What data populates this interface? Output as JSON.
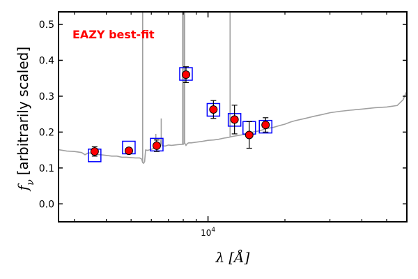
{
  "chart_data": {
    "type": "scatter",
    "xscale": "log",
    "xlim": [
      2600,
      60000
    ],
    "ylim": [
      -0.05,
      0.535
    ],
    "yticks": [
      0.0,
      0.1,
      0.2,
      0.3,
      0.4,
      0.5
    ],
    "ytick_labels": [
      "0.0",
      "0.1",
      "0.2",
      "0.3",
      "0.4",
      "0.5"
    ],
    "xtick_label": {
      "value": 10000,
      "base": "10",
      "exponent": "4"
    },
    "ylabel": "f_ν [arbitrarily scaled]",
    "ylabel_symbol": "f",
    "ylabel_subscript": "ν",
    "ylabel_text": "[arbitrarily scaled]",
    "xlabel": "λ [Å]",
    "xlabel_symbol": "λ",
    "xlabel_text": "[Å]",
    "annotation": {
      "text": "EAZY best-fit",
      "color": "#ff0000",
      "position": "top-left"
    },
    "grid": false,
    "colors": {
      "sed_line": "#a0a0a0",
      "model_box": "#0000ff",
      "observed_point": "#ff0000",
      "errorbar": "#000000"
    },
    "series": [
      {
        "name": "observed",
        "marker": "circle",
        "x": [
          3600,
          4900,
          6300,
          8200,
          10500,
          12700,
          14500,
          16800
        ],
        "y": [
          0.146,
          0.148,
          0.162,
          0.36,
          0.263,
          0.235,
          0.192,
          0.22
        ],
        "yerr": [
          0.013,
          0.007,
          0.016,
          0.022,
          0.025,
          0.04,
          0.037,
          0.02
        ]
      },
      {
        "name": "model",
        "marker": "square",
        "x": [
          3600,
          4900,
          6300,
          8200,
          10500,
          12700,
          14500,
          16800
        ],
        "y": [
          0.135,
          0.157,
          0.165,
          0.362,
          0.262,
          0.234,
          0.212,
          0.215
        ]
      },
      {
        "name": "sed",
        "type": "line",
        "x": [
          2600,
          2800,
          3000,
          3200,
          3300,
          3400,
          3500,
          3600,
          3800,
          4000,
          4200,
          4400,
          4600,
          4800,
          5000,
          5200,
          5400,
          5500,
          5550,
          5600,
          5650,
          5700,
          5800,
          6000,
          6200,
          6400,
          6500,
          6560,
          6600,
          6800,
          7000,
          7200,
          7600,
          7900,
          8000,
          8100,
          8200,
          8300,
          8400,
          8600,
          9000,
          9500,
          10000,
          10500,
          11000,
          11500,
          12000,
          12500,
          13000,
          14000,
          15000,
          16000,
          17000,
          18000,
          19000,
          20000,
          21000,
          22000,
          24000,
          26000,
          28000,
          30000,
          33000,
          36000,
          40000,
          45000,
          50000,
          55000,
          58000,
          60000
        ],
        "y": [
          0.151,
          0.147,
          0.146,
          0.143,
          0.137,
          0.142,
          0.141,
          0.138,
          0.137,
          0.135,
          0.133,
          0.133,
          0.13,
          0.13,
          0.129,
          0.128,
          0.128,
          0.125,
          0.115,
          0.113,
          0.118,
          0.15,
          0.149,
          0.152,
          0.156,
          0.16,
          0.16,
          0.185,
          0.162,
          0.161,
          0.164,
          0.163,
          0.165,
          0.166,
          0.166,
          0.17,
          0.163,
          0.168,
          0.17,
          0.17,
          0.172,
          0.174,
          0.177,
          0.178,
          0.18,
          0.183,
          0.185,
          0.188,
          0.19,
          0.194,
          0.2,
          0.204,
          0.21,
          0.213,
          0.218,
          0.222,
          0.228,
          0.232,
          0.238,
          0.244,
          0.249,
          0.254,
          0.258,
          0.261,
          0.264,
          0.268,
          0.27,
          0.274,
          0.29,
          0.315
        ],
        "emission_lines": [
          {
            "x": 5550,
            "ytop": 0.55
          },
          {
            "x": 6560,
            "ytop": 0.238
          },
          {
            "x": 6250,
            "ytop": 0.195
          },
          {
            "x": 7950,
            "ytop": 0.55
          },
          {
            "x": 8050,
            "ytop": 0.55
          },
          {
            "x": 8100,
            "ytop": 0.55
          },
          {
            "x": 12200,
            "ytop": 0.55
          }
        ]
      }
    ]
  }
}
